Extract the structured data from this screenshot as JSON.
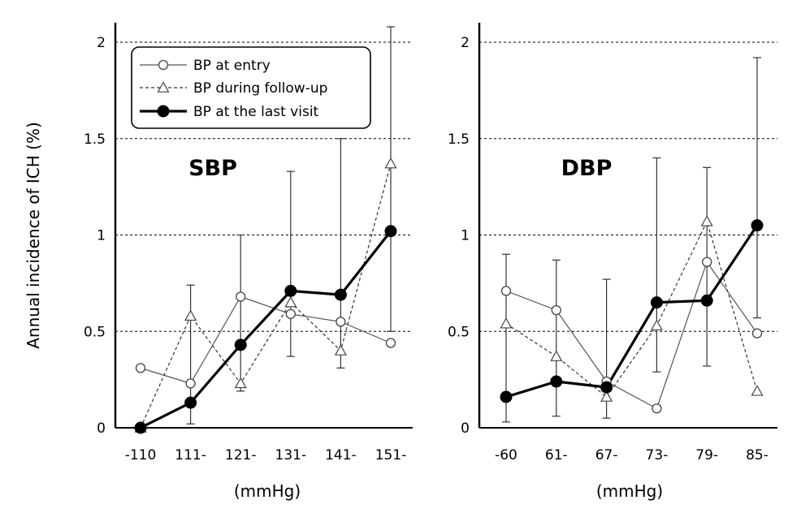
{
  "chart_data": {
    "ylabel": "Annual incidence of ICH (%)",
    "ylim": [
      0,
      2
    ],
    "yticks": [
      "0",
      "0.5",
      "1",
      "1.5",
      "2"
    ],
    "yticks_values": [
      0,
      0.5,
      1,
      1.5,
      2
    ],
    "grid": "horizontal dashed at 0.5, 1, 1.5, 2",
    "legend": {
      "placement": "top-left of SBP panel",
      "entries": [
        "BP at entry",
        "BP during follow-up",
        "BP at the last visit"
      ]
    },
    "panels": [
      {
        "type": "line",
        "title": "SBP",
        "xlabel": "(mmHg)",
        "categories": [
          "-110",
          "111-",
          "121-",
          "131-",
          "141-",
          "151-"
        ],
        "series": [
          {
            "name": "BP at entry",
            "values": [
              0.31,
              0.23,
              0.68,
              0.59,
              0.55,
              0.44
            ]
          },
          {
            "name": "BP during follow-up",
            "values": [
              0.0,
              0.58,
              0.23,
              0.65,
              0.4,
              1.37
            ]
          },
          {
            "name": "BP at the last visit",
            "values": [
              0.0,
              0.13,
              0.43,
              0.71,
              0.69,
              1.02
            ],
            "error_low": [
              0.0,
              0.02,
              0.19,
              0.37,
              0.31,
              0.5
            ],
            "error_high": [
              0.0,
              0.74,
              1.0,
              1.33,
              1.5,
              2.08
            ]
          }
        ]
      },
      {
        "type": "line",
        "title": "DBP",
        "xlabel": "(mmHg)",
        "categories": [
          "-60",
          "61-",
          "67-",
          "73-",
          "79-",
          "85-"
        ],
        "series": [
          {
            "name": "BP at entry",
            "values": [
              0.71,
              0.61,
              0.24,
              0.1,
              0.86,
              0.49
            ]
          },
          {
            "name": "BP during follow-up",
            "values": [
              0.54,
              0.37,
              0.16,
              0.53,
              1.07,
              0.19
            ]
          },
          {
            "name": "BP at the last visit",
            "values": [
              0.16,
              0.24,
              0.21,
              0.65,
              0.66,
              1.05
            ],
            "error_low": [
              0.03,
              0.06,
              0.05,
              0.29,
              0.32,
              0.57
            ],
            "error_high": [
              0.9,
              0.87,
              0.77,
              1.4,
              1.35,
              1.92
            ]
          }
        ]
      }
    ]
  }
}
